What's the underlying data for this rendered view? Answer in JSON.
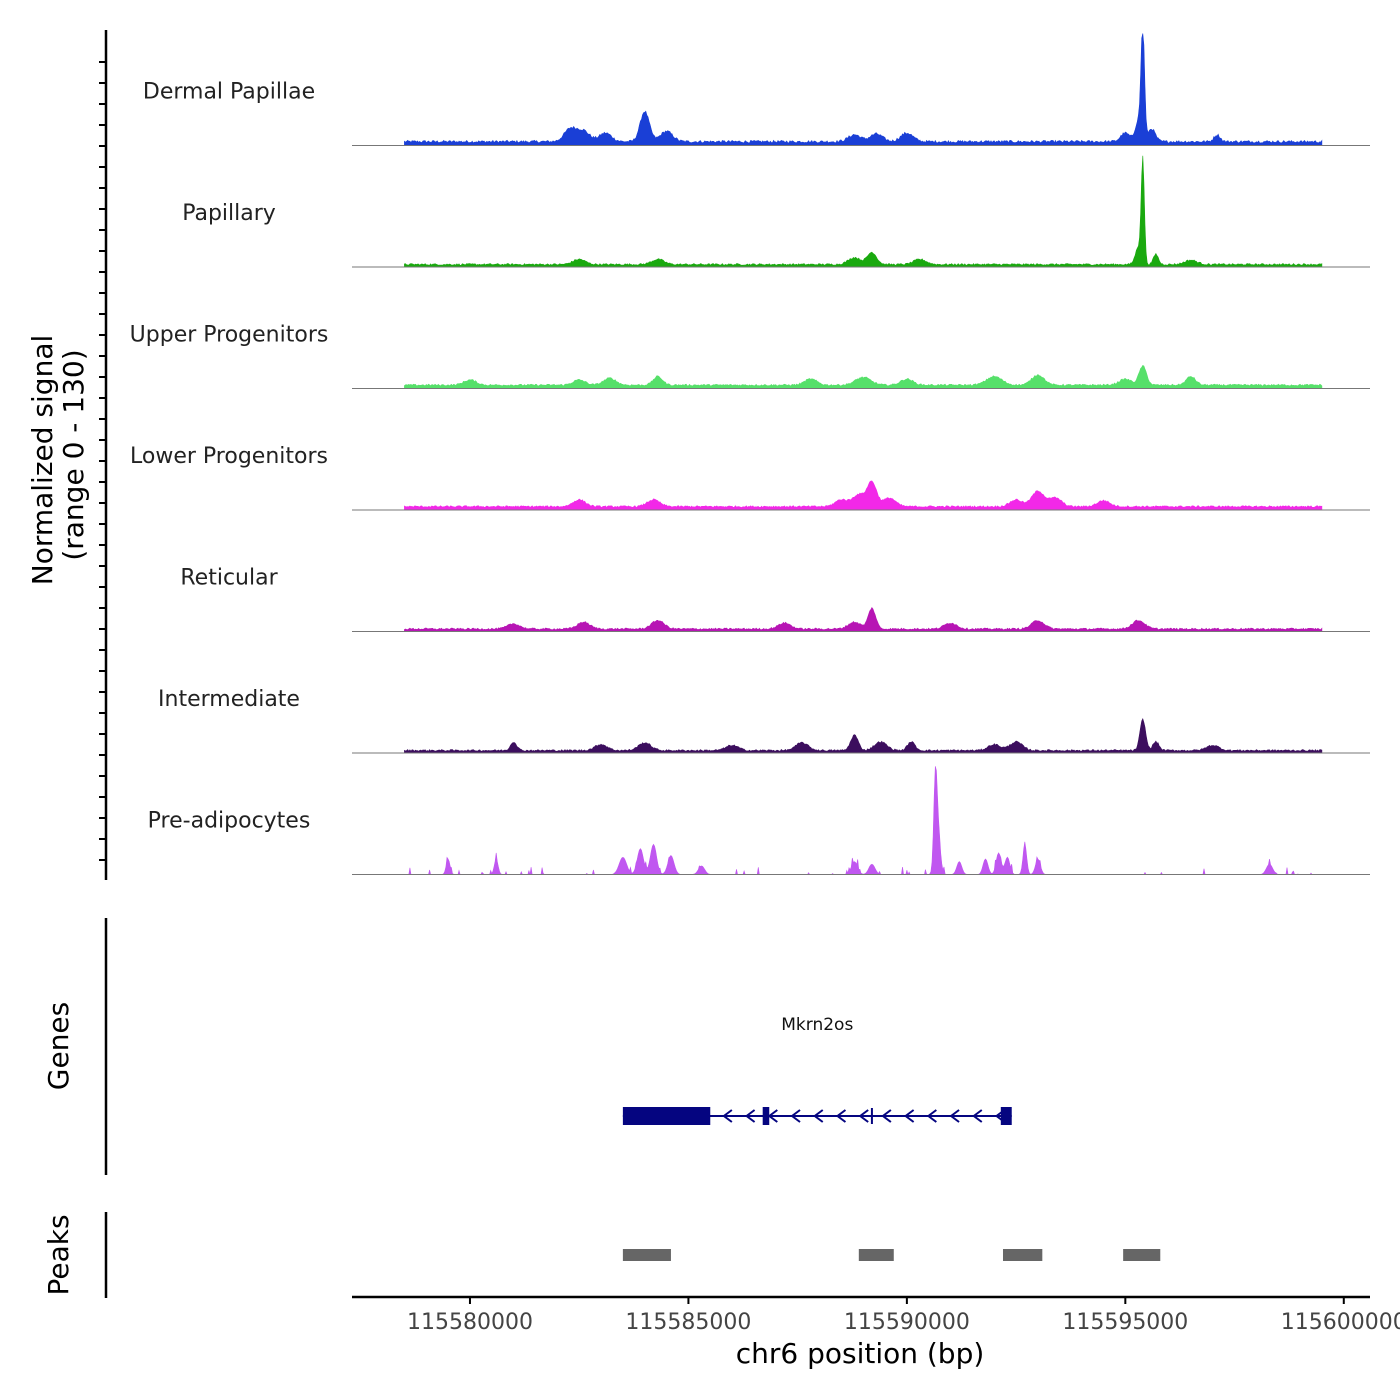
{
  "chart_data": {
    "type": "area",
    "title": "",
    "ylabel": "Normalized signal",
    "ylabel_range": "(range 0 - 130)",
    "xlabel": "chr6 position (bp)",
    "chromosome": "chr6",
    "ylim": [
      0,
      130
    ],
    "xlim": [
      115577300,
      115600600
    ],
    "x_ticks": [
      115580000,
      115585000,
      115590000,
      115595000,
      115600000
    ],
    "x_tick_labels": [
      "115580000",
      "115585000",
      "115590000",
      "115595000",
      "115600000"
    ],
    "signal_range": [
      115578500,
      115599500
    ],
    "tracks": [
      {
        "name": "Dermal Papillae",
        "color": "#1a3fd6",
        "baseline": 3,
        "noise": 3,
        "peaks": [
          [
            115582300,
            15,
            200
          ],
          [
            115582600,
            12,
            200
          ],
          [
            115583100,
            10,
            200
          ],
          [
            115584000,
            35,
            150
          ],
          [
            115584500,
            12,
            200
          ],
          [
            115588800,
            8,
            200
          ],
          [
            115589300,
            9,
            200
          ],
          [
            115590000,
            10,
            200
          ],
          [
            115595000,
            10,
            150
          ],
          [
            115595300,
            25,
            100
          ],
          [
            115595400,
            130,
            55
          ],
          [
            115595600,
            15,
            120
          ],
          [
            115597100,
            8,
            100
          ]
        ]
      },
      {
        "name": "Papillary",
        "color": "#1aa90f",
        "baseline": 2,
        "noise": 2,
        "peaks": [
          [
            115582500,
            6,
            200
          ],
          [
            115584300,
            6,
            200
          ],
          [
            115588800,
            8,
            200
          ],
          [
            115589200,
            14,
            150
          ],
          [
            115590300,
            6,
            200
          ],
          [
            115595300,
            20,
            100
          ],
          [
            115595400,
            118,
            50
          ],
          [
            115595700,
            12,
            80
          ],
          [
            115596500,
            5,
            200
          ]
        ]
      },
      {
        "name": "Upper Progenitors",
        "color": "#56e06a",
        "baseline": 3,
        "noise": 2,
        "peaks": [
          [
            115580000,
            6,
            200
          ],
          [
            115582500,
            6,
            200
          ],
          [
            115583200,
            8,
            200
          ],
          [
            115584300,
            10,
            150
          ],
          [
            115587800,
            7,
            200
          ],
          [
            115589000,
            9,
            250
          ],
          [
            115590000,
            7,
            200
          ],
          [
            115592000,
            10,
            250
          ],
          [
            115593000,
            12,
            200
          ],
          [
            115595000,
            7,
            200
          ],
          [
            115595400,
            22,
            120
          ],
          [
            115596500,
            10,
            150
          ]
        ]
      },
      {
        "name": "Lower Progenitors",
        "color": "#f228e8",
        "baseline": 3,
        "noise": 2,
        "peaks": [
          [
            115582500,
            8,
            200
          ],
          [
            115584200,
            8,
            200
          ],
          [
            115588500,
            8,
            200
          ],
          [
            115588900,
            14,
            200
          ],
          [
            115589200,
            28,
            150
          ],
          [
            115589600,
            10,
            200
          ],
          [
            115592500,
            8,
            200
          ],
          [
            115593000,
            18,
            200
          ],
          [
            115593400,
            10,
            200
          ],
          [
            115594500,
            7,
            200
          ]
        ]
      },
      {
        "name": "Reticular",
        "color": "#b715b4",
        "baseline": 2,
        "noise": 2,
        "peaks": [
          [
            115581000,
            6,
            200
          ],
          [
            115582600,
            8,
            200
          ],
          [
            115584300,
            10,
            200
          ],
          [
            115587200,
            7,
            200
          ],
          [
            115588800,
            8,
            200
          ],
          [
            115589200,
            24,
            120
          ],
          [
            115591000,
            7,
            200
          ],
          [
            115593000,
            10,
            200
          ],
          [
            115595300,
            10,
            200
          ]
        ]
      },
      {
        "name": "Intermediate",
        "color": "#3c0e5e",
        "baseline": 2,
        "noise": 2,
        "peaks": [
          [
            115581000,
            10,
            100
          ],
          [
            115583000,
            7,
            200
          ],
          [
            115584000,
            9,
            200
          ],
          [
            115586000,
            6,
            200
          ],
          [
            115587600,
            9,
            200
          ],
          [
            115588800,
            18,
            120
          ],
          [
            115589400,
            10,
            200
          ],
          [
            115590100,
            10,
            120
          ],
          [
            115592000,
            7,
            200
          ],
          [
            115592500,
            10,
            200
          ],
          [
            115595400,
            36,
            90
          ],
          [
            115595700,
            10,
            100
          ],
          [
            115597000,
            6,
            200
          ]
        ]
      },
      {
        "name": "Pre-adipocytes",
        "color": "#c057f0",
        "baseline": 0,
        "noise": 6,
        "peaks": [
          [
            115579500,
            18,
            60
          ],
          [
            115580600,
            18,
            60
          ],
          [
            115583500,
            20,
            120
          ],
          [
            115583900,
            30,
            100
          ],
          [
            115584200,
            35,
            100
          ],
          [
            115584600,
            22,
            100
          ],
          [
            115585300,
            10,
            100
          ],
          [
            115588800,
            15,
            100
          ],
          [
            115589200,
            12,
            100
          ],
          [
            115590650,
            85,
            50
          ],
          [
            115590700,
            60,
            80
          ],
          [
            115591200,
            15,
            80
          ],
          [
            115591800,
            18,
            80
          ],
          [
            115592100,
            25,
            80
          ],
          [
            115592300,
            20,
            80
          ],
          [
            115592700,
            35,
            60
          ],
          [
            115593000,
            18,
            80
          ],
          [
            115598300,
            12,
            100
          ]
        ]
      }
    ],
    "genes": [
      {
        "name": "Mkrn2os",
        "start": 115583500,
        "end": 115592400,
        "strand": "-",
        "exons": [
          [
            115583500,
            115585500
          ],
          [
            115586700,
            115586850
          ],
          [
            115592150,
            115592400
          ]
        ]
      }
    ],
    "peaks": [
      [
        115583500,
        115584600
      ],
      [
        115588900,
        115589700
      ],
      [
        115592200,
        115593100
      ],
      [
        115594950,
        115595800
      ]
    ]
  },
  "panels": {
    "genes_label": "Genes",
    "peaks_label": "Peaks"
  }
}
